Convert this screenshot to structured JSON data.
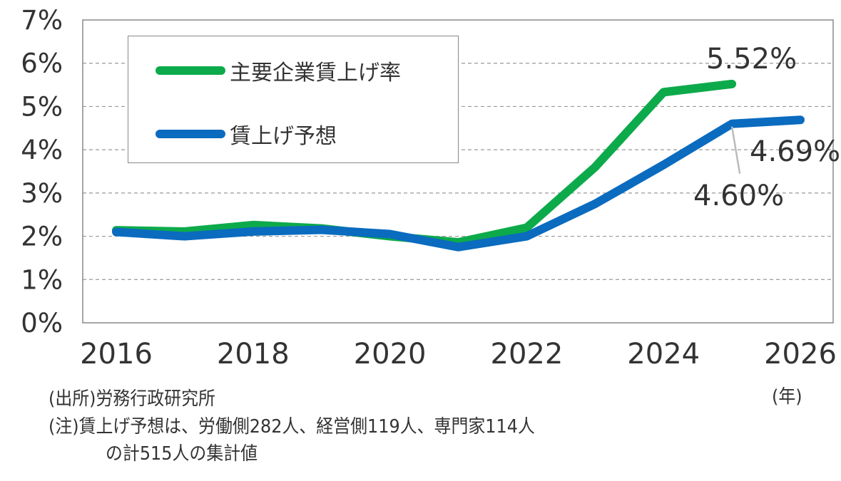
{
  "chart_data": {
    "type": "line",
    "title": "",
    "xlabel": "(年)",
    "ylabel": "",
    "x": [
      2016,
      2017,
      2018,
      2019,
      2020,
      2021,
      2022,
      2023,
      2024,
      2025,
      2026
    ],
    "xlim": [
      2016,
      2026
    ],
    "ylim": [
      0,
      7
    ],
    "x_ticks": [
      "2016",
      "2018",
      "2020",
      "2022",
      "2024",
      "2026"
    ],
    "y_ticks": [
      "0%",
      "1%",
      "2%",
      "3%",
      "4%",
      "5%",
      "6%",
      "7%"
    ],
    "grid": "horizontal dashed",
    "legend_position": "top-left",
    "series": [
      {
        "name": "主要企業賃上げ率",
        "color": "#0DAA4B",
        "values": [
          2.14,
          2.11,
          2.26,
          2.18,
          2.0,
          1.86,
          2.2,
          3.6,
          5.33,
          5.52,
          null
        ]
      },
      {
        "name": "賃上げ予想",
        "color": "#0A6BBF",
        "values": [
          2.1,
          2.0,
          2.11,
          2.15,
          2.05,
          1.75,
          2.0,
          2.75,
          3.65,
          4.6,
          4.69
        ]
      }
    ],
    "annotations": [
      {
        "text": "5.52%",
        "series": "主要企業賃上げ率",
        "x": 2025,
        "y": 5.52
      },
      {
        "text": "4.60%",
        "series": "賃上げ予想",
        "x": 2025,
        "y": 4.6
      },
      {
        "text": "4.69%",
        "series": "賃上げ予想",
        "x": 2026,
        "y": 4.69
      }
    ]
  },
  "notes": {
    "unit": "(年)",
    "source": "(出所)労務行政研究所",
    "note_line1": "(注)賃上げ予想は、労働側282人、経営側119人、専門家114人",
    "note_line2": "の計515人の集計値"
  }
}
